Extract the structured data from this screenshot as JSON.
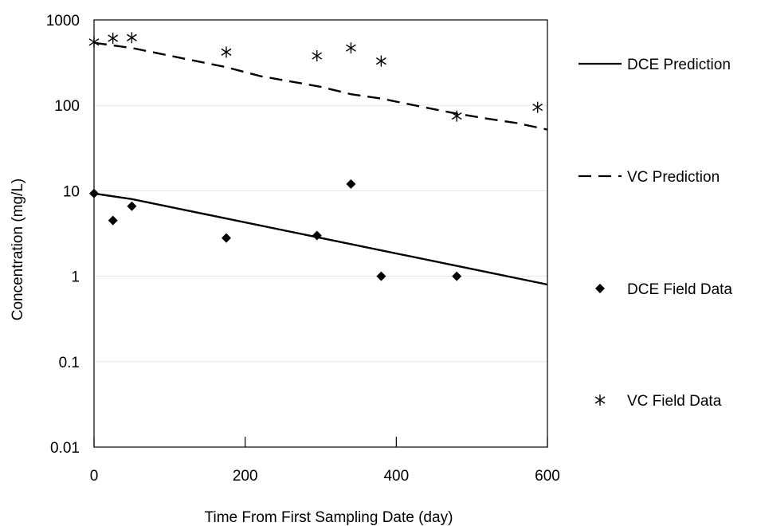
{
  "chart_data": {
    "type": "scatter",
    "xlabel": "Time From First Sampling Date (day)",
    "ylabel": "Concentration (mg/L)",
    "xlim": [
      0,
      600
    ],
    "ylim": [
      0.01,
      1000
    ],
    "yscale": "log",
    "grid": "horizontal-light",
    "legend_position": "right",
    "x_ticks": [
      0,
      200,
      400,
      600
    ],
    "x_tick_labels": [
      "0",
      "200",
      "400",
      "600"
    ],
    "y_ticks": [
      0.01,
      0.1,
      1,
      10,
      100,
      1000
    ],
    "y_tick_labels": [
      "0.01",
      "0.1",
      "1",
      "10",
      "100",
      "1000"
    ],
    "series": [
      {
        "name": "DCE Prediction",
        "kind": "line",
        "style": "solid",
        "color": "#000000",
        "x": [
          0,
          50,
          600
        ],
        "y": [
          9.3,
          8.0,
          0.8
        ]
      },
      {
        "name": "VC Prediction",
        "kind": "line",
        "style": "dashed",
        "color": "#000000",
        "x": [
          0,
          50,
          175,
          220,
          300,
          340,
          380,
          450,
          480,
          520,
          560,
          600
        ],
        "y": [
          540,
          470,
          280,
          220,
          165,
          135,
          120,
          90,
          80,
          70,
          62,
          52
        ]
      },
      {
        "name": "DCE Field Data",
        "kind": "markers",
        "marker": "diamond",
        "color": "#000000",
        "x": [
          0,
          25,
          50,
          175,
          295,
          340,
          380,
          480
        ],
        "y": [
          9.3,
          4.5,
          6.6,
          2.8,
          3.0,
          12.0,
          1.0,
          1.0
        ]
      },
      {
        "name": "VC Field Data",
        "kind": "markers",
        "marker": "asterisk",
        "color": "#000000",
        "x": [
          0,
          25,
          50,
          175,
          295,
          340,
          380,
          480,
          587
        ],
        "y": [
          550,
          610,
          620,
          420,
          380,
          470,
          330,
          75,
          95
        ]
      }
    ]
  }
}
